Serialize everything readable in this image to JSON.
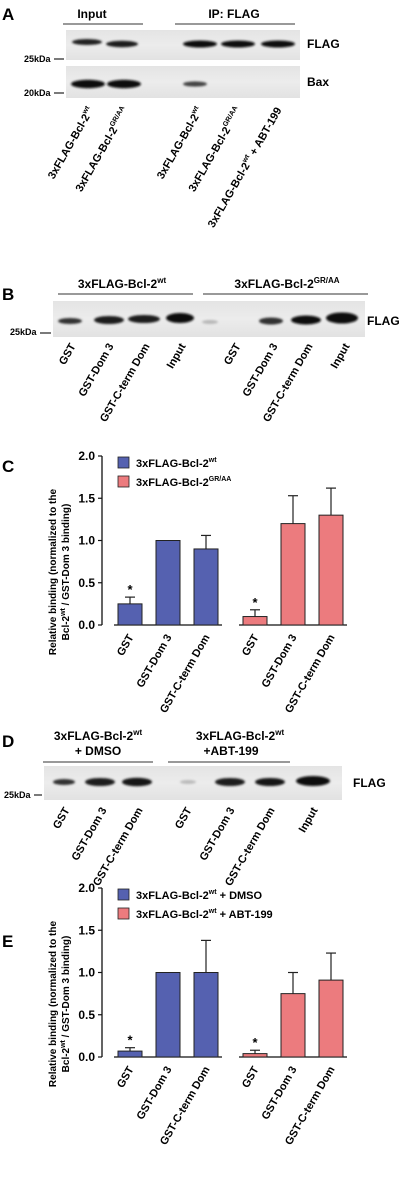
{
  "panel_a": {
    "letter": "A",
    "group_input": "Input",
    "group_ip": "IP: FLAG",
    "blot_flag_label": "FLAG",
    "blot_bax_label": "Bax",
    "marker_flag": "25kDa",
    "marker_bax": "20kDa",
    "lanes": [
      {
        "text": "3xFLAG-Bcl-2",
        "sup": "wt",
        "suffix": ""
      },
      {
        "text": "3xFLAG-Bcl-2",
        "sup": "GR/AA",
        "suffix": ""
      },
      {
        "text": "3xFLAG-Bcl-2",
        "sup": "wt",
        "suffix": ""
      },
      {
        "text": "3xFLAG-Bcl-2",
        "sup": "GR/AA",
        "suffix": ""
      },
      {
        "text": "3xFLAG-Bcl-2",
        "sup": "wt",
        "suffix": " + ABT-199"
      }
    ]
  },
  "panel_b": {
    "letter": "B",
    "group1": {
      "text": "3xFLAG-Bcl-2",
      "sup": "wt"
    },
    "group2": {
      "text": "3xFLAG-Bcl-2",
      "sup": "GR/AA"
    },
    "blot_label": "FLAG",
    "marker": "25kDa",
    "lanes": [
      "GST",
      "GST-Dom 3",
      "GST-C-term Dom",
      "Input",
      "GST",
      "GST-Dom 3",
      "GST-C-term Dom",
      "Input"
    ]
  },
  "panel_c": {
    "letter": "C",
    "chart_data": {
      "type": "bar",
      "ylabel_line1": "Relative binding (normalized to the",
      "ylabel_line2": {
        "pre": "Bcl-2",
        "sup": "wt",
        "post": " / GST-Dom 3 binding)"
      },
      "ylim": [
        0,
        2.0
      ],
      "yticks": [
        "0.0",
        "0.5",
        "1.0",
        "1.5",
        "2.0"
      ],
      "categories": [
        "GST",
        "GST-Dom 3",
        "GST-C-term Dom"
      ],
      "series": [
        {
          "name": "3xFLAG-Bcl-2",
          "sup": "wt",
          "color": "#5561b0",
          "values": [
            0.25,
            1.0,
            0.9
          ],
          "errors": [
            0.08,
            0,
            0.16
          ],
          "sig": [
            "*",
            "",
            ""
          ]
        },
        {
          "name": "3xFLAG-Bcl-2",
          "sup": "GR/AA",
          "color": "#ec7b7e",
          "values": [
            0.1,
            1.2,
            1.3
          ],
          "errors": [
            0.08,
            0.33,
            0.32
          ],
          "sig": [
            "*",
            "",
            ""
          ]
        }
      ],
      "legend_position": "top"
    }
  },
  "panel_d": {
    "letter": "D",
    "group1": {
      "text": "3xFLAG-Bcl-2",
      "sup": "wt",
      "line2": "+ DMSO"
    },
    "group2": {
      "text": "3xFLAG-Bcl-2",
      "sup": "wt",
      "line2": "+ABT-199"
    },
    "blot_label": "FLAG",
    "marker": "25kDa",
    "lanes": [
      "GST",
      "GST-Dom 3",
      "GST-C-term Dom",
      "GST",
      "GST-Dom 3",
      "GST-C-term Dom",
      "Input"
    ]
  },
  "panel_e": {
    "letter": "E",
    "chart_data": {
      "type": "bar",
      "ylabel_line1": "Relative binding (normalized to the",
      "ylabel_line2": {
        "pre": "Bcl-2",
        "sup": "wt",
        "post": " / GST-Dom 3 binding)"
      },
      "ylim": [
        0,
        2.0
      ],
      "yticks": [
        "0.0",
        "0.5",
        "1.0",
        "1.5",
        "2.0"
      ],
      "categories": [
        "GST",
        "GST-Dom 3",
        "GST-C-term Dom"
      ],
      "series": [
        {
          "name": "3xFLAG-Bcl-2",
          "sup": "wt",
          "suffix": " + DMSO",
          "color": "#5561b0",
          "values": [
            0.07,
            1.0,
            1.0
          ],
          "errors": [
            0.04,
            0,
            0.38
          ],
          "sig": [
            "*",
            "",
            ""
          ]
        },
        {
          "name": "3xFLAG-Bcl-2",
          "sup": "wt",
          "suffix": " + ABT-199",
          "color": "#ec7b7e",
          "values": [
            0.04,
            0.75,
            0.91
          ],
          "errors": [
            0.04,
            0.25,
            0.32
          ],
          "sig": [
            "*",
            "",
            ""
          ]
        }
      ],
      "legend_position": "top"
    }
  }
}
